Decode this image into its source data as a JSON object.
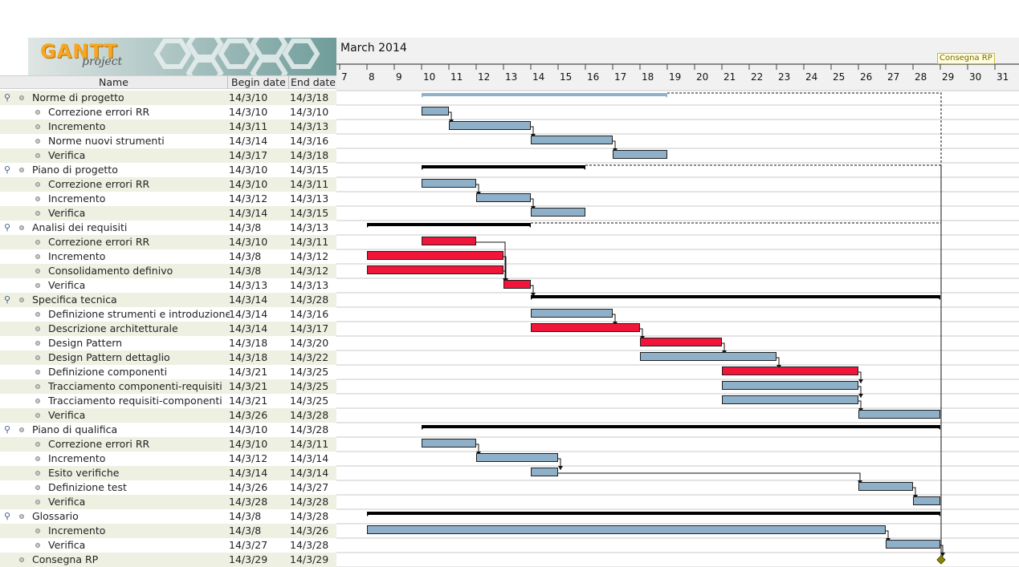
{
  "logo": {
    "name": "GANTT",
    "subtitle": "project"
  },
  "columns": {
    "name": "Name",
    "begin": "Begin date",
    "end": "End date"
  },
  "timeline": {
    "month_label": "March 2014",
    "days": [
      7,
      8,
      9,
      10,
      11,
      12,
      13,
      14,
      15,
      16,
      17,
      18,
      19,
      20,
      21,
      22,
      23,
      24,
      25,
      26,
      27,
      28,
      29,
      30,
      31
    ],
    "milestone_label": "Consegna RP"
  },
  "colors": {
    "normal_bar": "#8fb0c9",
    "critical_bar": "#f2153a",
    "summary_bar": "#000000",
    "summary_light": "#8fb0c9",
    "milestone": "#8a8a00",
    "alt_row": "#eef0e2"
  },
  "tasks": [
    {
      "name": "Norme di progetto",
      "begin": "14/3/10",
      "end": "14/3/18",
      "level": 0,
      "type": "summary-light",
      "start": 10,
      "finish": 18
    },
    {
      "name": "Correzione errori RR",
      "begin": "14/3/10",
      "end": "14/3/10",
      "level": 1,
      "type": "normal",
      "start": 10,
      "finish": 10
    },
    {
      "name": "Incremento",
      "begin": "14/3/11",
      "end": "14/3/13",
      "level": 1,
      "type": "normal",
      "start": 11,
      "finish": 13
    },
    {
      "name": "Norme  nuovi strumenti",
      "begin": "14/3/14",
      "end": "14/3/16",
      "level": 1,
      "type": "normal",
      "start": 14,
      "finish": 16
    },
    {
      "name": "Verifica",
      "begin": "14/3/17",
      "end": "14/3/18",
      "level": 1,
      "type": "normal",
      "start": 17,
      "finish": 18
    },
    {
      "name": "Piano di progetto",
      "begin": "14/3/10",
      "end": "14/3/15",
      "level": 0,
      "type": "summary",
      "start": 10,
      "finish": 15
    },
    {
      "name": "Correzione errori RR",
      "begin": "14/3/10",
      "end": "14/3/11",
      "level": 1,
      "type": "normal",
      "start": 10,
      "finish": 11
    },
    {
      "name": "Incremento",
      "begin": "14/3/12",
      "end": "14/3/13",
      "level": 1,
      "type": "normal",
      "start": 12,
      "finish": 13
    },
    {
      "name": "Verifica",
      "begin": "14/3/14",
      "end": "14/3/15",
      "level": 1,
      "type": "normal",
      "start": 14,
      "finish": 15
    },
    {
      "name": "Analisi dei requisiti",
      "begin": "14/3/8",
      "end": "14/3/13",
      "level": 0,
      "type": "summary",
      "start": 8,
      "finish": 13
    },
    {
      "name": "Correzione errori RR",
      "begin": "14/3/10",
      "end": "14/3/11",
      "level": 1,
      "type": "critical",
      "start": 10,
      "finish": 11
    },
    {
      "name": "Incremento",
      "begin": "14/3/8",
      "end": "14/3/12",
      "level": 1,
      "type": "critical",
      "start": 8,
      "finish": 12
    },
    {
      "name": "Consolidamento definivo",
      "begin": "14/3/8",
      "end": "14/3/12",
      "level": 1,
      "type": "critical",
      "start": 8,
      "finish": 12
    },
    {
      "name": "Verifica",
      "begin": "14/3/13",
      "end": "14/3/13",
      "level": 1,
      "type": "critical",
      "start": 13,
      "finish": 13
    },
    {
      "name": "Specifica tecnica",
      "begin": "14/3/14",
      "end": "14/3/28",
      "level": 0,
      "type": "summary",
      "start": 14,
      "finish": 28
    },
    {
      "name": "Definizione strumenti e introduzione",
      "begin": "14/3/14",
      "end": "14/3/16",
      "level": 1,
      "type": "normal",
      "start": 14,
      "finish": 16
    },
    {
      "name": "Descrizione architetturale",
      "begin": "14/3/14",
      "end": "14/3/17",
      "level": 1,
      "type": "critical",
      "start": 14,
      "finish": 17
    },
    {
      "name": "Design Pattern",
      "begin": "14/3/18",
      "end": "14/3/20",
      "level": 1,
      "type": "critical",
      "start": 18,
      "finish": 20
    },
    {
      "name": "Design Pattern dettaglio",
      "begin": "14/3/18",
      "end": "14/3/22",
      "level": 1,
      "type": "normal",
      "start": 18,
      "finish": 22
    },
    {
      "name": "Definizione componenti",
      "begin": "14/3/21",
      "end": "14/3/25",
      "level": 1,
      "type": "critical",
      "start": 21,
      "finish": 25
    },
    {
      "name": "Tracciamento componenti-requisiti",
      "begin": "14/3/21",
      "end": "14/3/25",
      "level": 1,
      "type": "normal",
      "start": 21,
      "finish": 25
    },
    {
      "name": "Tracciamento requisiti-componenti",
      "begin": "14/3/21",
      "end": "14/3/25",
      "level": 1,
      "type": "normal",
      "start": 21,
      "finish": 25
    },
    {
      "name": "Verifica",
      "begin": "14/3/26",
      "end": "14/3/28",
      "level": 1,
      "type": "normal",
      "start": 26,
      "finish": 28
    },
    {
      "name": "Piano di qualifica",
      "begin": "14/3/10",
      "end": "14/3/28",
      "level": 0,
      "type": "summary",
      "start": 10,
      "finish": 28
    },
    {
      "name": "Correzione errori RR",
      "begin": "14/3/10",
      "end": "14/3/11",
      "level": 1,
      "type": "normal",
      "start": 10,
      "finish": 11
    },
    {
      "name": "Incremento",
      "begin": "14/3/12",
      "end": "14/3/14",
      "level": 1,
      "type": "normal",
      "start": 12,
      "finish": 14
    },
    {
      "name": "Esito verifiche",
      "begin": "14/3/14",
      "end": "14/3/14",
      "level": 1,
      "type": "normal",
      "start": 14,
      "finish": 14
    },
    {
      "name": "Definizione test",
      "begin": "14/3/26",
      "end": "14/3/27",
      "level": 1,
      "type": "normal",
      "start": 26,
      "finish": 27
    },
    {
      "name": "Verifica",
      "begin": "14/3/28",
      "end": "14/3/28",
      "level": 1,
      "type": "normal",
      "start": 28,
      "finish": 28
    },
    {
      "name": "Glossario",
      "begin": "14/3/8",
      "end": "14/3/28",
      "level": 0,
      "type": "summary",
      "start": 8,
      "finish": 28
    },
    {
      "name": "Incremento",
      "begin": "14/3/8",
      "end": "14/3/26",
      "level": 1,
      "type": "normal",
      "start": 8,
      "finish": 26
    },
    {
      "name": "Verifica",
      "begin": "14/3/27",
      "end": "14/3/28",
      "level": 1,
      "type": "normal",
      "start": 27,
      "finish": 28
    },
    {
      "name": "Consegna RP",
      "begin": "14/3/29",
      "end": "14/3/29",
      "level": 0,
      "type": "milestone",
      "start": 29,
      "finish": 29
    }
  ]
}
